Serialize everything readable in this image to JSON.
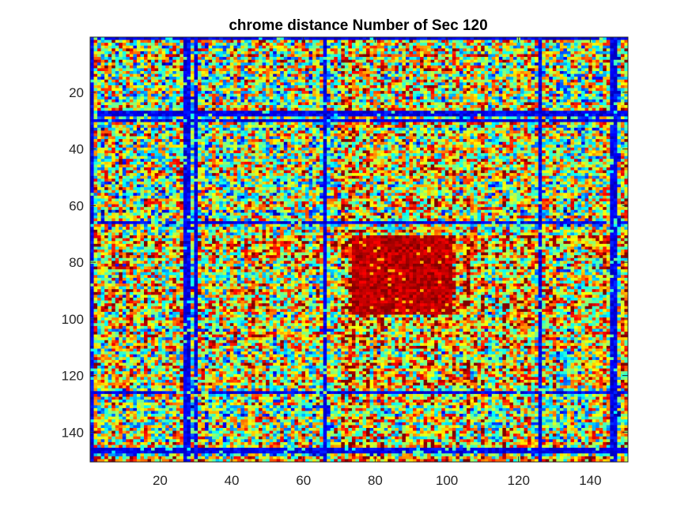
{
  "chart_data": {
    "type": "heatmap",
    "title": "chrome distance Number of Sec 120",
    "xlabel": "",
    "ylabel": "",
    "rows": 150,
    "cols": 150,
    "xlim": [
      0.5,
      150.5
    ],
    "ylim": [
      0.5,
      150.5
    ],
    "y_direction": "reverse",
    "x_ticks": [
      20,
      40,
      60,
      80,
      100,
      120,
      140
    ],
    "y_ticks": [
      20,
      40,
      60,
      80,
      100,
      120,
      140
    ],
    "colormap": "jet",
    "grid": false,
    "colorbar": false,
    "low_value_rows_cols": [
      1,
      27,
      28,
      30,
      66,
      126,
      146,
      147
    ],
    "high_value_block": {
      "rows": [
        71,
        98
      ],
      "cols": [
        74,
        101
      ]
    },
    "colors": {
      "axis": "#262626",
      "background": "#ffffff",
      "jet_low": "#00008f",
      "jet_high": "#800000"
    }
  }
}
